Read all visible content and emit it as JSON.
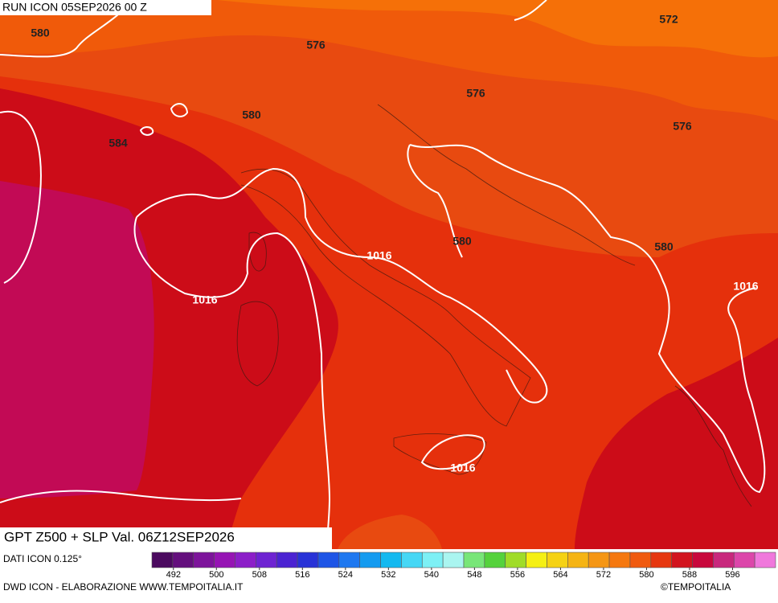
{
  "header": {
    "run": "RUN ICON 05SEP2026 00 Z"
  },
  "map": {
    "title": "GPT Z500 + SLP Val. 06Z12SEP2026",
    "contour_labels": [
      "580",
      "576",
      "572",
      "576",
      "580",
      "584",
      "576",
      "580",
      "580",
      "1016",
      "1016",
      "1016",
      "1016"
    ]
  },
  "footer": {
    "source": "DATI ICON 0.125°",
    "credit": "DWD ICON - ELABORAZIONE WWW.TEMPOITALIA.IT",
    "copyright": "©TEMPOITALIA"
  },
  "colorbar": {
    "lim": [
      488,
      604
    ],
    "ticks": [
      492,
      500,
      508,
      516,
      524,
      532,
      540,
      548,
      556,
      564,
      572,
      580,
      588,
      596
    ],
    "colors": [
      "#4b0a5f",
      "#640f7d",
      "#7d149b",
      "#9614b4",
      "#8c1ec8",
      "#6e23d2",
      "#4b23d2",
      "#2832d7",
      "#1e55e6",
      "#1e78f0",
      "#149bf0",
      "#14b9f0",
      "#46d7f5",
      "#7df0f5",
      "#aaf5f0",
      "#78e678",
      "#55d23c",
      "#a0dc28",
      "#f5f014",
      "#f5d214",
      "#f5b414",
      "#f59614",
      "#f5780f",
      "#f05a0f",
      "#e6370f",
      "#d2141e",
      "#c8083c",
      "#c8287d",
      "#dc46aa",
      "#f078dc"
    ]
  }
}
